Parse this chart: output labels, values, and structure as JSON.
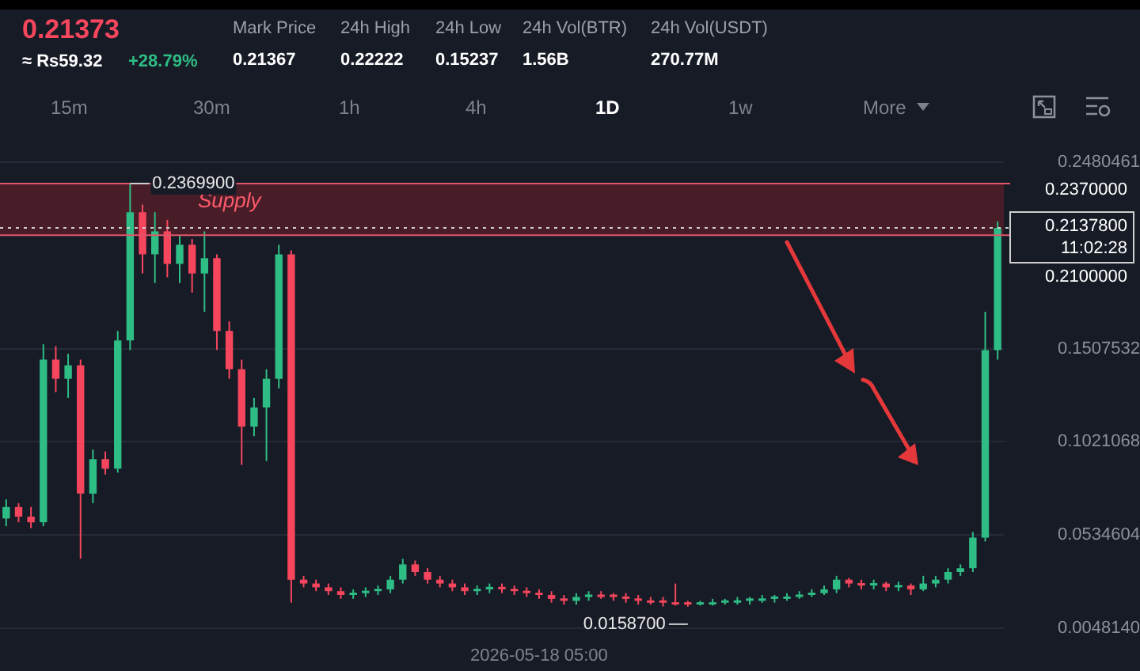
{
  "chart_data": [
    {
      "type": "other",
      "title": "0.21373",
      "annotations": [
        "≈ Rs59.32",
        "+28.79%",
        "Mark Price",
        "0.21367",
        "24h High",
        "0.22222",
        "24h Low",
        "0.15237",
        "24h Vol(BTR)",
        "1.56B",
        "24h Vol(USDT)",
        "270.77M",
        "15m",
        "30m",
        "1h",
        "4h",
        "1D",
        "1w",
        "More"
      ]
    },
    {
      "type": "candlestick",
      "categories": [
        null,
        null,
        null,
        null,
        null,
        null,
        null,
        null,
        null,
        null,
        null,
        null,
        null,
        null,
        null,
        null,
        null,
        null,
        null,
        null,
        null,
        null,
        null,
        null,
        null,
        null,
        null,
        null,
        null,
        null,
        null,
        null,
        null,
        null,
        null,
        null,
        null,
        null,
        null,
        null,
        null,
        null,
        null,
        "2026-05-18 05:00",
        null,
        null,
        null,
        null,
        null,
        null,
        null,
        null,
        null,
        null,
        null,
        null,
        null,
        null,
        null,
        null,
        null,
        null,
        null,
        null,
        null,
        null,
        null,
        null,
        null,
        null,
        null,
        null,
        null,
        null,
        null,
        null,
        null,
        null,
        null,
        null,
        null
      ],
      "ohlc": [
        [
          0.062,
          0.072,
          0.058,
          0.068
        ],
        [
          0.068,
          0.07,
          0.06,
          0.063
        ],
        [
          0.063,
          0.068,
          0.057,
          0.06
        ],
        [
          0.06,
          0.153,
          0.058,
          0.145
        ],
        [
          0.145,
          0.152,
          0.128,
          0.135
        ],
        [
          0.135,
          0.148,
          0.125,
          0.142
        ],
        [
          0.142,
          0.145,
          0.041,
          0.075
        ],
        [
          0.075,
          0.098,
          0.07,
          0.093
        ],
        [
          0.093,
          0.097,
          0.085,
          0.088
        ],
        [
          0.088,
          0.16,
          0.086,
          0.155
        ],
        [
          0.155,
          0.23699,
          0.15,
          0.222
        ],
        [
          0.222,
          0.226,
          0.19,
          0.2
        ],
        [
          0.2,
          0.222,
          0.185,
          0.212
        ],
        [
          0.212,
          0.218,
          0.188,
          0.195
        ],
        [
          0.195,
          0.21,
          0.185,
          0.205
        ],
        [
          0.205,
          0.208,
          0.18,
          0.19
        ],
        [
          0.19,
          0.212,
          0.17,
          0.198
        ],
        [
          0.198,
          0.2,
          0.15,
          0.16
        ],
        [
          0.16,
          0.165,
          0.135,
          0.14
        ],
        [
          0.14,
          0.145,
          0.09,
          0.11
        ],
        [
          0.11,
          0.125,
          0.105,
          0.12
        ],
        [
          0.12,
          0.14,
          0.092,
          0.135
        ],
        [
          0.135,
          0.205,
          0.13,
          0.2
        ],
        [
          0.2,
          0.202,
          0.018,
          0.03
        ],
        [
          0.03,
          0.032,
          0.026,
          0.028
        ],
        [
          0.028,
          0.03,
          0.024,
          0.026
        ],
        [
          0.026,
          0.028,
          0.022,
          0.024
        ],
        [
          0.024,
          0.026,
          0.02,
          0.022
        ],
        [
          0.022,
          0.025,
          0.02,
          0.023
        ],
        [
          0.023,
          0.026,
          0.021,
          0.024
        ],
        [
          0.024,
          0.027,
          0.022,
          0.025
        ],
        [
          0.025,
          0.032,
          0.023,
          0.03
        ],
        [
          0.03,
          0.041,
          0.028,
          0.038
        ],
        [
          0.038,
          0.04,
          0.032,
          0.034
        ],
        [
          0.034,
          0.036,
          0.028,
          0.03
        ],
        [
          0.03,
          0.032,
          0.026,
          0.028
        ],
        [
          0.028,
          0.03,
          0.024,
          0.026
        ],
        [
          0.026,
          0.028,
          0.022,
          0.024
        ],
        [
          0.024,
          0.027,
          0.022,
          0.025
        ],
        [
          0.025,
          0.028,
          0.023,
          0.026
        ],
        [
          0.026,
          0.028,
          0.023,
          0.025
        ],
        [
          0.025,
          0.027,
          0.022,
          0.024
        ],
        [
          0.024,
          0.026,
          0.021,
          0.023
        ],
        [
          0.023,
          0.025,
          0.02,
          0.022
        ],
        [
          0.022,
          0.024,
          0.018,
          0.02
        ],
        [
          0.02,
          0.022,
          0.017,
          0.019
        ],
        [
          0.019,
          0.023,
          0.017,
          0.021
        ],
        [
          0.021,
          0.024,
          0.019,
          0.022
        ],
        [
          0.022,
          0.024,
          0.02,
          0.021
        ],
        [
          0.022,
          0.023,
          0.019,
          0.021
        ],
        [
          0.021,
          0.023,
          0.018,
          0.02
        ],
        [
          0.02,
          0.022,
          0.017,
          0.019
        ],
        [
          0.019,
          0.021,
          0.017,
          0.018
        ],
        [
          0.019,
          0.021,
          0.016,
          0.018
        ],
        [
          0.018,
          0.028,
          0.0165,
          0.017
        ],
        [
          0.018,
          0.019,
          0.01587,
          0.017
        ],
        [
          0.017,
          0.019,
          0.0165,
          0.018
        ],
        [
          0.017,
          0.02,
          0.0165,
          0.018
        ],
        [
          0.018,
          0.02,
          0.017,
          0.019
        ],
        [
          0.018,
          0.021,
          0.017,
          0.019
        ],
        [
          0.019,
          0.021,
          0.017,
          0.02
        ],
        [
          0.019,
          0.022,
          0.018,
          0.02
        ],
        [
          0.02,
          0.022,
          0.018,
          0.021
        ],
        [
          0.02,
          0.023,
          0.019,
          0.021
        ],
        [
          0.021,
          0.024,
          0.02,
          0.022
        ],
        [
          0.022,
          0.025,
          0.021,
          0.023
        ],
        [
          0.023,
          0.027,
          0.022,
          0.025
        ],
        [
          0.025,
          0.032,
          0.023,
          0.03
        ],
        [
          0.03,
          0.031,
          0.026,
          0.028
        ],
        [
          0.028,
          0.03,
          0.025,
          0.027
        ],
        [
          0.027,
          0.03,
          0.025,
          0.028
        ],
        [
          0.028,
          0.029,
          0.024,
          0.026
        ],
        [
          0.026,
          0.029,
          0.024,
          0.027
        ],
        [
          0.027,
          0.028,
          0.022,
          0.025
        ],
        [
          0.025,
          0.032,
          0.024,
          0.028
        ],
        [
          0.028,
          0.032,
          0.026,
          0.03
        ],
        [
          0.03,
          0.036,
          0.028,
          0.034
        ],
        [
          0.034,
          0.038,
          0.032,
          0.036
        ],
        [
          0.036,
          0.055,
          0.034,
          0.052
        ],
        [
          0.052,
          0.17,
          0.05,
          0.15
        ],
        [
          0.15,
          0.2172,
          0.145,
          0.21378
        ]
      ],
      "ylim": [
        0.004814,
        0.2480461
      ],
      "yticks": [
        {
          "value": 0.004814,
          "label": "0.0048140"
        },
        {
          "value": 0.0534604,
          "label": "0.0534604"
        },
        {
          "value": 0.1021068,
          "label": "0.1021068"
        },
        {
          "value": 0.1507532,
          "label": "0.1507532"
        },
        {
          "value": 0.2480461,
          "label": "0.2480461"
        }
      ],
      "grid": "y",
      "bands": [
        {
          "axis": "y",
          "from": 0.21,
          "to": 0.237,
          "label": "Supply",
          "color": "#5a1f2a"
        }
      ],
      "ref_lines": [
        {
          "axis": "y",
          "value": 0.237,
          "label": "0.2370000",
          "color": "#e0566a"
        },
        {
          "axis": "y",
          "value": 0.21,
          "label": "0.2100000",
          "color": "#e0566a"
        },
        {
          "axis": "y",
          "value": 0.21378,
          "label": "0.2137800 11:02:28",
          "color": "#cfcfcf",
          "line_style": "dotted"
        }
      ],
      "annotations": [
        {
          "text": "0.2369900",
          "y": 0.23699
        },
        {
          "text": "0.0158700",
          "y": 0.01587
        }
      ]
    }
  ]
}
